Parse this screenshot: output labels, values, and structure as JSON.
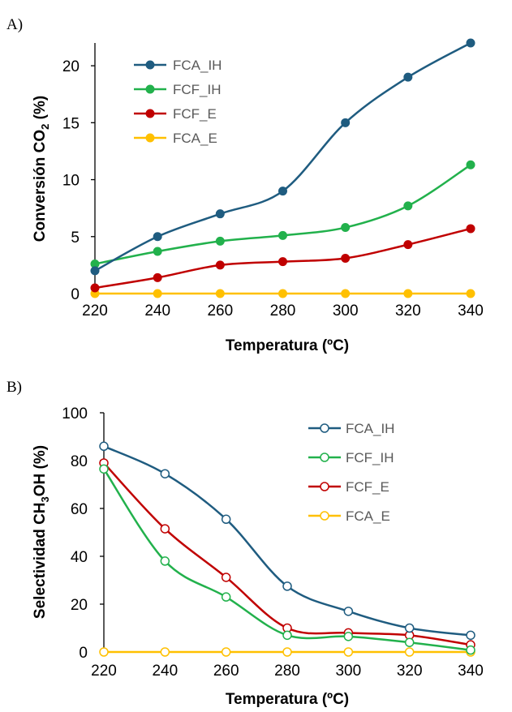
{
  "chart_data": [
    {
      "panel_label": "A)",
      "type": "line",
      "markers": "filled",
      "x": [
        220,
        240,
        260,
        280,
        300,
        320,
        340
      ],
      "xlim": [
        220,
        340
      ],
      "xticks": [
        "220",
        "240",
        "260",
        "280",
        "300",
        "320",
        "340"
      ],
      "ylim": [
        0,
        22
      ],
      "yticks": [
        "0",
        "5",
        "10",
        "15",
        "20"
      ],
      "ytick_values": [
        0,
        5,
        10,
        15,
        20
      ],
      "xlabel": "Temperatura (ºC)",
      "ylabel": {
        "main": "Conversión CO",
        "sub": "2",
        "tail": " (%)"
      },
      "grid": false,
      "legend_position": "top-left",
      "series": [
        {
          "name": "FCA_IH",
          "color": "#1F5C80",
          "values": [
            2.0,
            5.0,
            7.0,
            9.0,
            15.0,
            19.0,
            22.0
          ]
        },
        {
          "name": "FCF_IH",
          "color": "#22B14C",
          "values": [
            2.6,
            3.7,
            4.6,
            5.1,
            5.8,
            7.7,
            11.3
          ]
        },
        {
          "name": "FCF_E",
          "color": "#C00000",
          "values": [
            0.5,
            1.4,
            2.5,
            2.8,
            3.1,
            4.3,
            5.7
          ]
        },
        {
          "name": "FCA_E",
          "color": "#FFC000",
          "values": [
            0,
            0,
            0,
            0,
            0,
            0,
            0
          ]
        }
      ]
    },
    {
      "panel_label": "B)",
      "type": "line",
      "markers": "hollow",
      "x": [
        220,
        240,
        260,
        280,
        300,
        320,
        340
      ],
      "xlim": [
        220,
        340
      ],
      "xticks": [
        "220",
        "240",
        "260",
        "280",
        "300",
        "320",
        "340"
      ],
      "ylim": [
        0,
        100
      ],
      "yticks": [
        "0",
        "20",
        "40",
        "60",
        "80",
        "100"
      ],
      "ytick_values": [
        0,
        20,
        40,
        60,
        80,
        100
      ],
      "xlabel": "Temperatura (ºC)",
      "ylabel": {
        "main": "Selectividad CH",
        "sub": "3",
        "tail": "OH (%)"
      },
      "grid": false,
      "legend_position": "top-right",
      "series": [
        {
          "name": "FCA_IH",
          "color": "#1F5C80",
          "values": [
            86,
            74.5,
            55.5,
            27.5,
            17,
            10,
            7
          ]
        },
        {
          "name": "FCF_IH",
          "color": "#22B14C",
          "values": [
            76.5,
            38,
            23,
            7,
            6.5,
            4,
            0.8
          ]
        },
        {
          "name": "FCF_E",
          "color": "#C00000",
          "values": [
            79,
            51.5,
            31.2,
            10,
            8,
            7,
            3
          ]
        },
        {
          "name": "FCA_E",
          "color": "#FFC000",
          "values": [
            0,
            0,
            0,
            0,
            0,
            0,
            0
          ]
        }
      ]
    }
  ]
}
